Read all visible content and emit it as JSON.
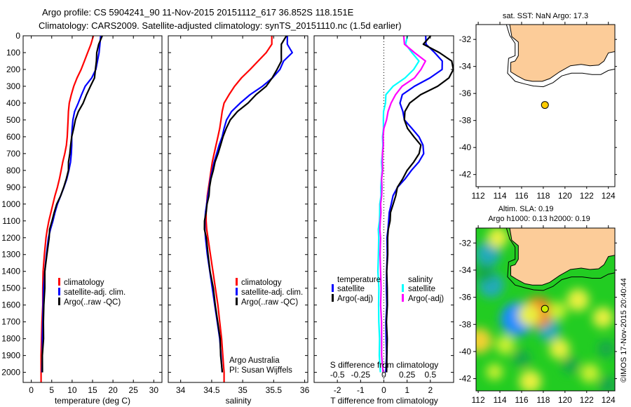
{
  "header": {
    "line1": "Argo profile: CS 5904241_90 11-Nov-2015 20151112_617 36.852S 118.151E",
    "line2": "Climatology: CARS2009. Satellite-adjusted climatology: synTS_20151110.nc (1.5d earlier)"
  },
  "colors": {
    "climatology": "#ff0000",
    "satellite": "#0000ff",
    "argo": "#000000",
    "sal_satellite": "#00ffff",
    "sal_argo": "#ff00ff",
    "land": "#fccc99",
    "float_marker": "#ffcc00"
  },
  "chart_data": [
    {
      "id": "temperature",
      "type": "line",
      "xlabel": "temperature (deg C)",
      "ylabel": "",
      "xlim": [
        -2,
        32
      ],
      "ylim": [
        2060,
        0
      ],
      "xticks": [
        0,
        5,
        10,
        15,
        20,
        25,
        30
      ],
      "yticks": [
        0,
        100,
        200,
        300,
        400,
        500,
        600,
        700,
        800,
        900,
        1000,
        1100,
        1200,
        1300,
        1400,
        1500,
        1600,
        1700,
        1800,
        1900,
        2000
      ],
      "legend": {
        "position": "center",
        "entries": [
          "climatology",
          "satellite-adj. clim.",
          "Argo(..raw -QC)"
        ]
      },
      "depth": [
        0,
        50,
        100,
        150,
        200,
        250,
        300,
        350,
        400,
        450,
        500,
        550,
        600,
        650,
        700,
        750,
        800,
        850,
        900,
        950,
        1000,
        1050,
        1100,
        1150,
        1200,
        1300,
        1400,
        1500,
        1600,
        1700,
        1800,
        1900,
        2000,
        2060
      ],
      "series": [
        {
          "name": "climatology",
          "color": "#ff0000",
          "values": [
            15.2,
            14.6,
            13.8,
            13.0,
            12.2,
            11.2,
            10.4,
            9.8,
            9.3,
            9.1,
            9.0,
            8.9,
            8.8,
            8.6,
            8.2,
            7.7,
            7.3,
            6.9,
            6.4,
            5.8,
            5.3,
            4.8,
            4.3,
            3.9,
            3.6,
            3.2,
            2.9,
            2.8,
            2.8,
            2.6,
            2.5,
            2.4,
            2.4,
            2.4
          ]
        },
        {
          "name": "satellite-adj. clim.",
          "color": "#0000ff",
          "values": [
            17.0,
            16.8,
            16.6,
            16.2,
            15.8,
            14.8,
            13.2,
            12.3,
            11.5,
            10.6,
            10.2,
            10.0,
            9.9,
            9.9,
            9.8,
            9.6,
            9.2,
            8.7,
            8.0,
            7.2,
            6.4,
            5.8,
            5.3,
            4.7,
            4.2,
            3.7,
            3.3,
            3.0,
            2.9,
            2.8,
            2.7,
            2.7,
            2.6,
            null
          ]
        },
        {
          "name": "Argo(..raw -QC)",
          "color": "#000000",
          "values": [
            17.3,
            16.6,
            16.0,
            15.9,
            15.8,
            15.4,
            14.5,
            13.6,
            12.6,
            11.6,
            10.8,
            10.3,
            10.0,
            9.6,
            9.4,
            9.2,
            9.0,
            8.6,
            8.0,
            7.1,
            6.3,
            5.6,
            5.0,
            4.6,
            4.3,
            3.8,
            3.4,
            3.2,
            3.1,
            3.0,
            2.9,
            2.8,
            2.7,
            null
          ]
        }
      ]
    },
    {
      "id": "salinity",
      "type": "line",
      "xlabel": "salinity",
      "ylabel": "",
      "xlim": [
        33.8,
        36.05
      ],
      "ylim": [
        2060,
        0
      ],
      "xticks": [
        34,
        34.5,
        35,
        35.5,
        36
      ],
      "legend": {
        "position": "center",
        "entries": [
          "climatology",
          "satellite-adj. clim.",
          "Argo(..raw -QC)"
        ]
      },
      "annotation": [
        "Argo Australia",
        "PI: Susan Wijffels"
      ],
      "depth": [
        0,
        50,
        100,
        150,
        200,
        250,
        300,
        350,
        400,
        450,
        500,
        550,
        600,
        650,
        700,
        750,
        800,
        850,
        900,
        950,
        1000,
        1050,
        1100,
        1150,
        1200,
        1300,
        1400,
        1500,
        1600,
        1700,
        1800,
        1900,
        2000,
        2060
      ],
      "series": [
        {
          "name": "climatology",
          "color": "#ff0000",
          "values": [
            35.47,
            35.47,
            35.38,
            35.25,
            35.12,
            34.98,
            34.87,
            34.78,
            34.7,
            34.67,
            34.65,
            34.63,
            34.6,
            34.57,
            34.54,
            34.51,
            34.49,
            34.47,
            34.45,
            34.43,
            34.42,
            34.41,
            34.41,
            34.42,
            34.44,
            34.48,
            34.52,
            34.56,
            34.6,
            34.63,
            34.66,
            34.68,
            34.7,
            34.7
          ]
        },
        {
          "name": "satellite-adj. clim.",
          "color": "#0000ff",
          "values": [
            35.72,
            35.72,
            35.8,
            35.66,
            35.6,
            35.48,
            35.32,
            35.12,
            34.96,
            34.82,
            34.74,
            34.7,
            34.67,
            34.62,
            34.58,
            34.54,
            34.51,
            34.48,
            34.46,
            34.44,
            34.42,
            34.4,
            34.39,
            34.39,
            34.4,
            34.43,
            34.47,
            34.51,
            34.55,
            34.59,
            34.63,
            34.65,
            34.67,
            null
          ]
        },
        {
          "name": "Argo(..raw -QC)",
          "color": "#000000",
          "values": [
            35.7,
            35.63,
            35.62,
            35.62,
            35.56,
            35.47,
            35.38,
            35.22,
            35.08,
            34.92,
            34.8,
            34.73,
            34.69,
            34.64,
            34.6,
            34.56,
            34.52,
            34.49,
            34.47,
            34.45,
            34.43,
            34.41,
            34.38,
            34.39,
            34.41,
            34.44,
            34.48,
            34.52,
            34.56,
            34.6,
            34.63,
            34.65,
            34.67,
            null
          ]
        }
      ]
    },
    {
      "id": "difference",
      "type": "line",
      "xlabel": "T difference from climatology",
      "xlabel2": "S difference from climatology",
      "xlim": [
        -3,
        3
      ],
      "ylim": [
        2060,
        0
      ],
      "xticks": [
        -2,
        -1,
        0,
        1,
        2
      ],
      "xticks2_labels": [
        "-0.5",
        "-0.25",
        "0",
        "0.25",
        "0.5"
      ],
      "xticks2_values": [
        -2,
        -1,
        0,
        1,
        2
      ],
      "zero_line": "dotted",
      "legend": {
        "position": "center",
        "groups": [
          {
            "title": "temperature",
            "entries": [
              "satellite",
              "Argo(-adj)"
            ]
          },
          {
            "title": "salinity",
            "entries": [
              "satellite",
              "Argo(-adj)"
            ]
          }
        ]
      },
      "depth": [
        0,
        50,
        100,
        150,
        200,
        250,
        300,
        350,
        400,
        450,
        500,
        550,
        600,
        650,
        700,
        750,
        800,
        850,
        900,
        950,
        1000,
        1050,
        1100,
        1150,
        1200,
        1300,
        1400,
        1500,
        1600,
        1700,
        1800,
        1900,
        2000
      ],
      "series": [
        {
          "name": "temperature satellite",
          "color": "#0000ff",
          "values": [
            1.8,
            1.8,
            2.2,
            2.5,
            2.5,
            2.0,
            1.3,
            0.8,
            0.7,
            0.8,
            0.9,
            1.2,
            1.5,
            1.7,
            1.7,
            1.5,
            1.2,
            0.9,
            0.6,
            0.4,
            0.3,
            0.25,
            0.2,
            0.17,
            0.15,
            0.13,
            0.12,
            0.12,
            0.11,
            0.1,
            0.1,
            0.1,
            0.1
          ]
        },
        {
          "name": "temperature Argo(-adj)",
          "color": "#000000",
          "values": [
            2.0,
            1.7,
            2.4,
            2.9,
            3.0,
            2.8,
            2.3,
            1.6,
            1.1,
            0.9,
            0.9,
            1.0,
            1.3,
            1.6,
            1.5,
            1.3,
            1.0,
            0.8,
            0.6,
            0.5,
            0.4,
            0.3,
            0.25,
            0.2,
            0.17,
            0.15,
            0.14,
            0.14,
            0.14,
            0.13,
            0.13,
            0.13,
            0.13
          ]
        },
        {
          "name": "salinity satellite",
          "color": "#00ffff",
          "values": [
            1.0,
            0.95,
            1.2,
            1.5,
            1.3,
            0.9,
            0.4,
            0.1,
            0.05,
            0.0,
            -0.02,
            -0.03,
            -0.04,
            -0.05,
            -0.07,
            -0.08,
            -0.09,
            -0.1,
            -0.12,
            -0.14,
            -0.16,
            -0.18,
            -0.2,
            -0.22,
            -0.23,
            -0.24,
            -0.24,
            -0.23,
            -0.22,
            -0.21,
            -0.2,
            -0.18,
            -0.15
          ]
        },
        {
          "name": "salinity Argo(-adj)",
          "color": "#ff00ff",
          "values": [
            0.85,
            0.9,
            1.3,
            1.8,
            1.6,
            1.3,
            0.8,
            0.5,
            0.3,
            0.2,
            0.1,
            0.0,
            -0.02,
            -0.04,
            -0.05,
            -0.06,
            -0.07,
            -0.08,
            -0.09,
            -0.1,
            -0.12,
            -0.14,
            -0.15,
            -0.16,
            -0.16,
            -0.15,
            -0.14,
            -0.13,
            -0.12,
            -0.11,
            -0.1,
            -0.08,
            -0.05
          ]
        }
      ]
    },
    {
      "id": "map-sst",
      "type": "scatter",
      "title": "sat. SST: NaN Argo: 17.3",
      "xlim": [
        111.8,
        124.6
      ],
      "ylim": [
        -42.9,
        -30.9
      ],
      "xticks": [
        112,
        114,
        116,
        118,
        120,
        122,
        124
      ],
      "yticks": [
        -32,
        -34,
        -36,
        -38,
        -40,
        -42
      ],
      "points": [
        {
          "lon": 118.151,
          "lat": -36.852,
          "color": "#ffcc00"
        }
      ],
      "coast": [
        [
          114.9,
          -30.9
        ],
        [
          115.1,
          -31.8
        ],
        [
          115.7,
          -32.2
        ],
        [
          115.7,
          -33.2
        ],
        [
          115.4,
          -33.6
        ],
        [
          115.0,
          -33.7
        ],
        [
          115.0,
          -34.4
        ],
        [
          115.6,
          -34.7
        ],
        [
          116.3,
          -35.0
        ],
        [
          117.0,
          -35.1
        ],
        [
          117.9,
          -35.1
        ],
        [
          118.6,
          -34.9
        ],
        [
          119.5,
          -34.4
        ],
        [
          120.5,
          -33.95
        ],
        [
          121.5,
          -33.85
        ],
        [
          122.3,
          -33.95
        ],
        [
          123.1,
          -33.9
        ],
        [
          123.6,
          -33.6
        ],
        [
          124.0,
          -33.0
        ],
        [
          124.6,
          -32.9
        ]
      ],
      "shelf": [
        [
          114.6,
          -30.9
        ],
        [
          114.9,
          -31.7
        ],
        [
          115.4,
          -32.3
        ],
        [
          115.4,
          -33.2
        ],
        [
          114.8,
          -33.4
        ],
        [
          114.7,
          -34.5
        ],
        [
          115.4,
          -35.1
        ],
        [
          116.3,
          -35.3
        ],
        [
          117.1,
          -35.45
        ],
        [
          118.0,
          -35.5
        ],
        [
          118.9,
          -35.2
        ],
        [
          119.7,
          -34.7
        ],
        [
          120.6,
          -34.5
        ],
        [
          121.6,
          -34.5
        ],
        [
          122.5,
          -34.6
        ],
        [
          123.3,
          -34.6
        ],
        [
          124.0,
          -34.3
        ],
        [
          124.6,
          -34.2
        ]
      ]
    },
    {
      "id": "map-sla",
      "type": "heatmap",
      "title": "Altim. SLA: 0.19",
      "subtitle": "Argo h1000: 0.13 h2000: 0.19",
      "xlim": [
        111.8,
        124.6
      ],
      "ylim": [
        -42.9,
        -30.9
      ],
      "xticks": [
        112,
        114,
        116,
        118,
        120,
        122,
        124
      ],
      "yticks": [
        -32,
        -34,
        -36,
        -38,
        -40,
        -42
      ],
      "points": [
        {
          "lon": 118.151,
          "lat": -36.852,
          "color": "#ccee00"
        }
      ],
      "blobs": [
        {
          "lon": 115.6,
          "lat": -37.6,
          "value": -0.35
        },
        {
          "lon": 113.2,
          "lat": -35.1,
          "value": -0.2
        },
        {
          "lon": 112.9,
          "lat": -32.8,
          "value": -0.2
        },
        {
          "lon": 112.6,
          "lat": -34.2,
          "value": -0.1
        },
        {
          "lon": 118.5,
          "lat": -38.4,
          "value": -0.15
        },
        {
          "lon": 117.5,
          "lat": -37.1,
          "value": 0.3
        },
        {
          "lon": 116.7,
          "lat": -37.3,
          "value": 0.15
        },
        {
          "lon": 112.1,
          "lat": -39.2,
          "value": 0.2
        },
        {
          "lon": 121.2,
          "lat": -36.2,
          "value": 0.15
        },
        {
          "lon": 116.8,
          "lat": -42.2,
          "value": 0.15
        },
        {
          "lon": 113.8,
          "lat": -31.6,
          "value": 0.12
        },
        {
          "lon": 119.5,
          "lat": -39.8,
          "value": 0.12
        },
        {
          "lon": 123.5,
          "lat": -37.5,
          "value": 0.12
        },
        {
          "lon": 114.5,
          "lat": -39.5,
          "value": 0.1
        },
        {
          "lon": 122.3,
          "lat": -41.6,
          "value": 0.1
        },
        {
          "lon": 116.0,
          "lat": -40.5,
          "value": -0.06
        },
        {
          "lon": 120.5,
          "lat": -41.0,
          "value": -0.05
        },
        {
          "lon": 124.0,
          "lat": -42.5,
          "value": -0.08
        },
        {
          "lon": 123.8,
          "lat": -39.8,
          "value": -0.06
        },
        {
          "lon": 119.3,
          "lat": -37.0,
          "value": 0.08
        },
        {
          "lon": 113.5,
          "lat": -41.5,
          "value": 0.05
        }
      ],
      "colorscale_note": "blue(low) - cyan - green(0) - yellow - orange(high)"
    }
  ],
  "credit": "©IMOS 17-Nov-2015 20:40:44"
}
